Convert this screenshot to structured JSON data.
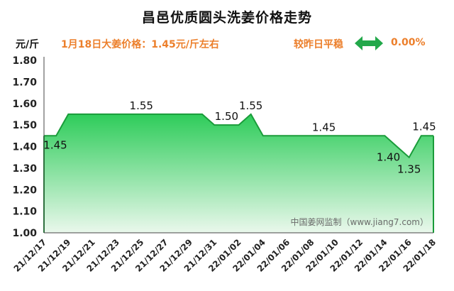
{
  "header": {
    "title": "昌邑优质圆头洗姜价格走势",
    "unit": "元/斤",
    "price_note": "1月18日大姜价格：1.45元/斤左右",
    "compare_label": "较昨日平稳",
    "change_value": "0.00%",
    "arrow_icon": "double-arrow-icon",
    "arrow_color": "#22a84a",
    "accent_color": "#ec7f2b"
  },
  "watermark": "中国姜网监制（www.jiang7.com）",
  "chart_data": {
    "type": "area",
    "title": "昌邑优质圆头洗姜价格走势",
    "ylabel": "元/斤",
    "ylim": [
      1.0,
      1.8
    ],
    "yticks": [
      "1.00",
      "1.10",
      "1.20",
      "1.30",
      "1.40",
      "1.50",
      "1.60",
      "1.70",
      "1.80"
    ],
    "grid": false,
    "fill_top_color": "#2ecc5a",
    "fill_bottom_color": "#eaf8ec",
    "line_color": "#1a9c3a",
    "x": [
      "21/12/17",
      "21/12/18",
      "21/12/19",
      "21/12/20",
      "21/12/21",
      "21/12/22",
      "21/12/23",
      "21/12/24",
      "21/12/25",
      "21/12/26",
      "21/12/27",
      "21/12/28",
      "21/12/29",
      "21/12/30",
      "21/12/31",
      "22/01/01",
      "22/01/02",
      "22/01/03",
      "22/01/04",
      "22/01/05",
      "22/01/06",
      "22/01/07",
      "22/01/08",
      "22/01/09",
      "22/01/10",
      "22/01/11",
      "22/01/12",
      "22/01/13",
      "22/01/14",
      "22/01/15",
      "22/01/16",
      "22/01/17",
      "22/01/18"
    ],
    "values": [
      1.45,
      1.45,
      1.55,
      1.55,
      1.55,
      1.55,
      1.55,
      1.55,
      1.55,
      1.55,
      1.55,
      1.55,
      1.55,
      1.55,
      1.5,
      1.5,
      1.5,
      1.55,
      1.45,
      1.45,
      1.45,
      1.45,
      1.45,
      1.45,
      1.45,
      1.45,
      1.45,
      1.45,
      1.45,
      1.4,
      1.35,
      1.45,
      1.45
    ],
    "xtick_labels": [
      "21/12/17",
      "21/12/19",
      "21/12/21",
      "21/12/23",
      "21/12/25",
      "21/12/27",
      "21/12/29",
      "21/12/31",
      "22/01/02",
      "22/01/04",
      "22/01/06",
      "22/01/08",
      "22/01/10",
      "22/01/12",
      "22/01/14",
      "22/01/16",
      "22/01/18"
    ],
    "data_labels": [
      {
        "x": "21/12/17",
        "value": "1.45"
      },
      {
        "x": "21/12/25",
        "value": "1.55"
      },
      {
        "x": "22/01/01",
        "value": "1.50"
      },
      {
        "x": "22/01/03",
        "value": "1.55"
      },
      {
        "x": "22/01/09",
        "value": "1.45"
      },
      {
        "x": "22/01/15",
        "value": "1.40"
      },
      {
        "x": "22/01/16",
        "value": "1.35"
      },
      {
        "x": "22/01/18",
        "value": "1.45"
      }
    ]
  }
}
